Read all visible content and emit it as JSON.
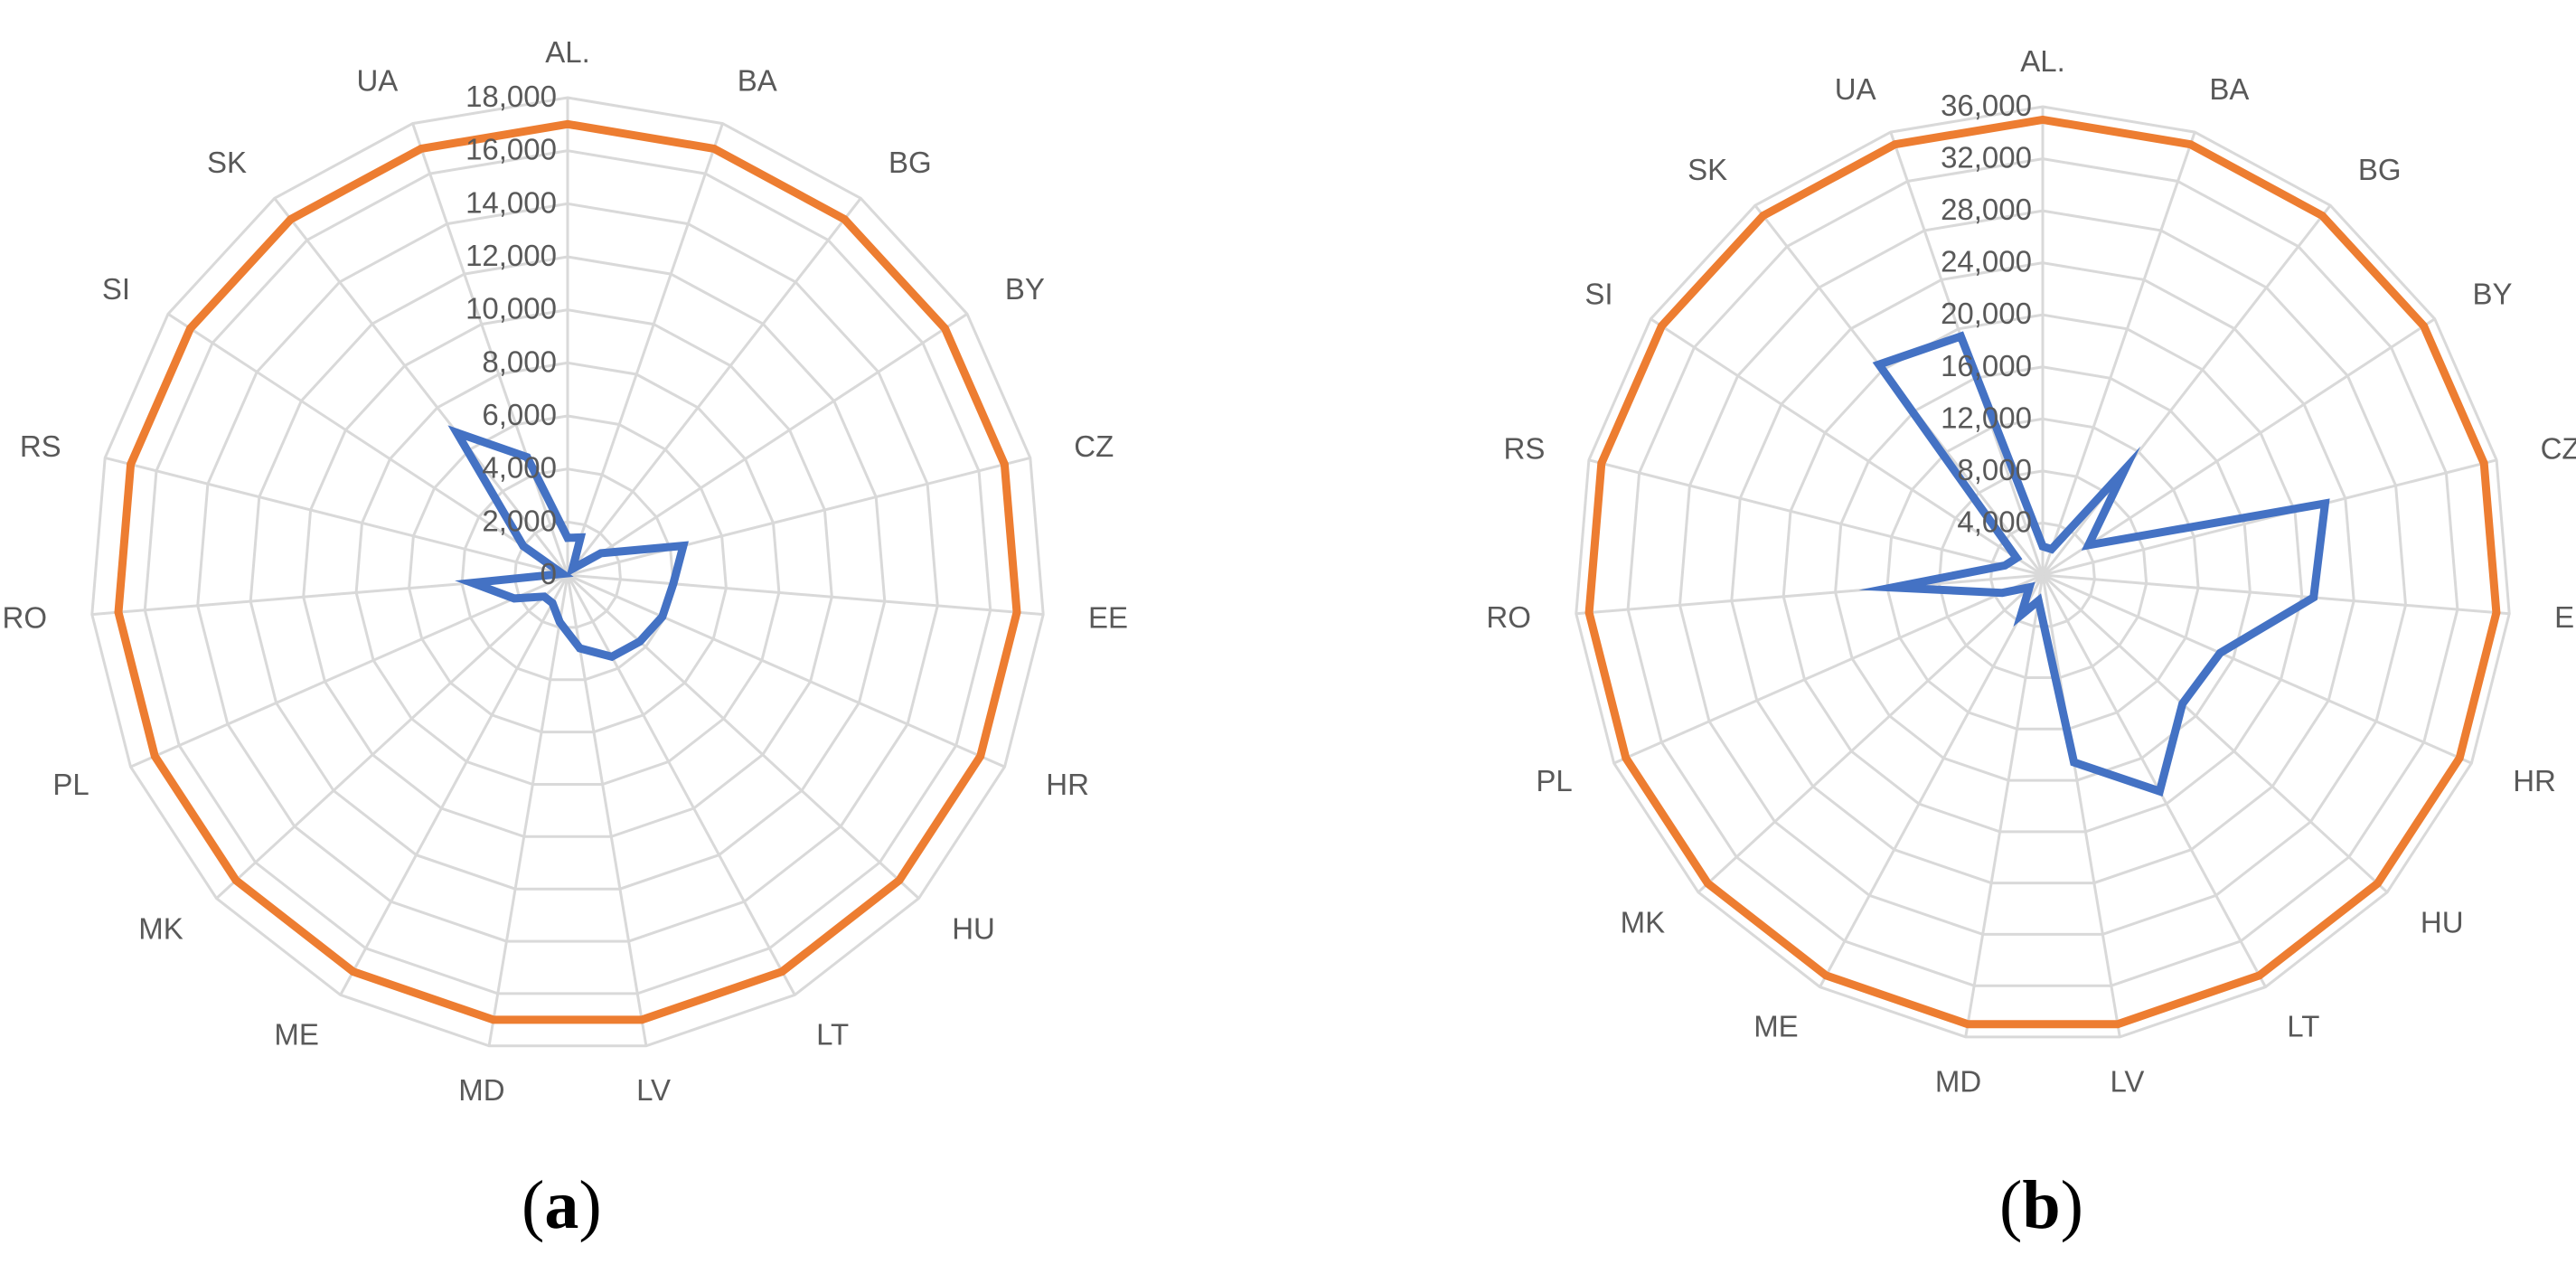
{
  "panels": [
    {
      "id": "a",
      "label_letter": "a"
    },
    {
      "id": "b",
      "label_letter": "b"
    }
  ],
  "colors": {
    "series_actual": "#4472c4",
    "series_max": "#ed7d31",
    "grid": "#d9d9d9",
    "text": "#595959"
  },
  "chart_data": [
    {
      "type": "radar",
      "categories": [
        "AL.",
        "BA",
        "BG",
        "BY",
        "CZ",
        "EE",
        "HR",
        "HU",
        "LT",
        "LV",
        "MD",
        "ME",
        "MK",
        "PL",
        "RO",
        "RS",
        "SI",
        "SK",
        "UA"
      ],
      "tick_labels": [
        "0",
        "2,000",
        "4,000",
        "6,000",
        "8,000",
        "10,000",
        "12,000",
        "14,000",
        "16,000",
        "18,000"
      ],
      "range": [
        0,
        18000
      ],
      "grid": true,
      "series": [
        {
          "color": "#4472c4",
          "values": [
            1400,
            1500,
            300,
            1500,
            4500,
            4000,
            3900,
            3700,
            3500,
            2800,
            1800,
            1200,
            1200,
            2200,
            3600,
            200,
            2000,
            6800,
            4700
          ]
        },
        {
          "color": "#ed7d31",
          "values": [
            17000,
            17000,
            17000,
            17000,
            17000,
            17000,
            17000,
            17000,
            17000,
            17000,
            17000,
            17000,
            17000,
            17000,
            17000,
            17000,
            17000,
            17000,
            17000
          ]
        }
      ]
    },
    {
      "type": "radar",
      "categories": [
        "AL.",
        "BA",
        "BG",
        "BY",
        "CZ",
        "EE",
        "HR",
        "HU",
        "LT",
        "LV",
        "MD",
        "ME",
        "MK",
        "PL",
        "RO",
        "RS",
        "SI",
        "SK",
        "UA"
      ],
      "tick_labels": [
        "4,000",
        "8,000",
        "12,000",
        "16,000",
        "20,000",
        "24,000",
        "28,000",
        "32,000",
        "36,000"
      ],
      "range": [
        0,
        36000
      ],
      "grid": true,
      "series": [
        {
          "color": "#4472c4",
          "values": [
            2200,
            2100,
            10300,
            4200,
            22400,
            20900,
            14900,
            14600,
            18900,
            14600,
            2000,
            3500,
            1400,
            3400,
            11600,
            3000,
            2400,
            20500,
            19400
          ]
        },
        {
          "color": "#ed7d31",
          "values": [
            35000,
            35000,
            35000,
            35000,
            35000,
            35000,
            35000,
            35000,
            35000,
            35000,
            35000,
            35000,
            35000,
            35000,
            35000,
            35000,
            35000,
            35000,
            35000
          ]
        }
      ]
    }
  ]
}
